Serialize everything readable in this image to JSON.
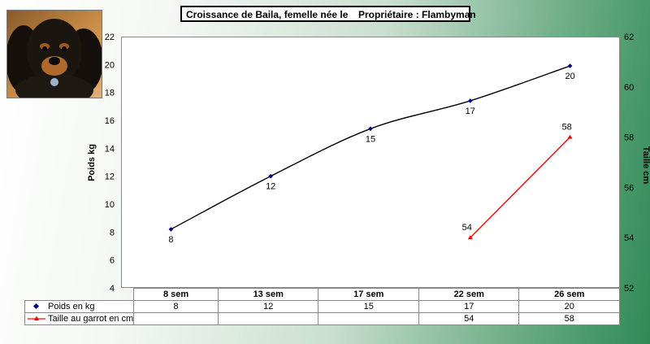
{
  "title": {
    "left": "Croissance de Baila, femelle née le",
    "right": "Propriétaire : Flambyman"
  },
  "chart_data": {
    "type": "line",
    "categories": [
      "8 sem",
      "13 sem",
      "17 sem",
      "22 sem",
      "26 sem"
    ],
    "ylabel": "Poids kg",
    "y2label": "Taille cm",
    "ylim": [
      4,
      22
    ],
    "yticks": [
      4,
      6,
      8,
      10,
      12,
      14,
      16,
      18,
      20,
      22
    ],
    "y2lim": [
      52,
      62
    ],
    "y2ticks": [
      52,
      54,
      56,
      58,
      60,
      62
    ],
    "grid": false,
    "legend": "table",
    "series": [
      {
        "name": "Poids en kg",
        "axis": "left",
        "values": [
          8,
          12,
          15,
          17,
          20
        ],
        "plot": [
          8.2,
          12,
          15.4,
          17.4,
          19.9
        ],
        "color": "#000000",
        "marker_color": "#00008b",
        "marker": "diamond"
      },
      {
        "name": "Taille au garrot en cm",
        "axis": "right",
        "values": [
          null,
          null,
          null,
          54,
          58
        ],
        "color": "#ff0000",
        "marker": "triangle"
      }
    ]
  }
}
